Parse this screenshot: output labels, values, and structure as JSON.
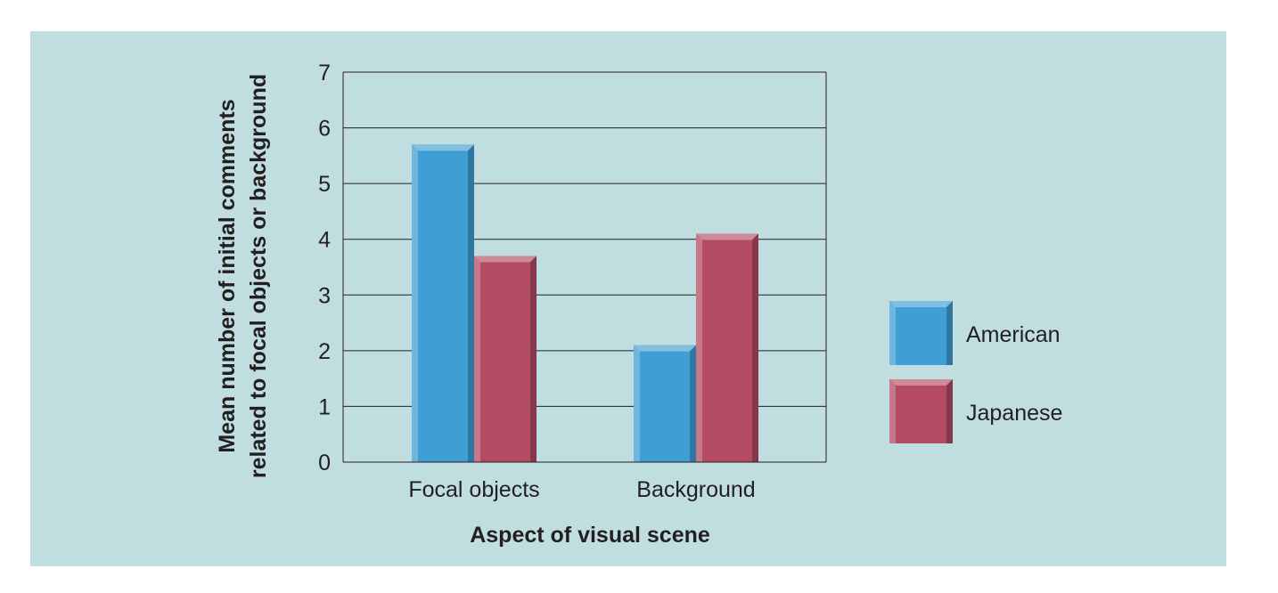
{
  "chart_data": {
    "type": "bar",
    "categories": [
      "Focal objects",
      "Background"
    ],
    "series": [
      {
        "name": "American",
        "values": [
          5.7,
          2.1
        ],
        "color": "#3f9ed3"
      },
      {
        "name": "Japanese",
        "values": [
          3.7,
          4.1
        ],
        "color": "#b34b62"
      }
    ],
    "xlabel": "Aspect of visual scene",
    "ylabel_lines": [
      "Mean number of initial comments",
      "related to focal objects or background"
    ],
    "ylim": [
      0,
      7
    ],
    "yticks": [
      "0",
      "1",
      "2",
      "3",
      "4",
      "5",
      "6",
      "7"
    ],
    "grid": true,
    "legend": "right",
    "colors": {
      "background": "#c0dde0",
      "axis": "#231f20",
      "plot_area": "#c0dde0"
    }
  }
}
